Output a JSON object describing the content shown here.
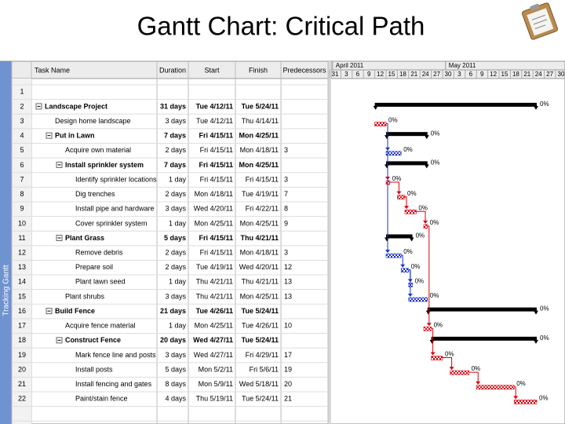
{
  "title": "Gantt Chart: Critical Path",
  "view_label": "Tracking Gantt",
  "columns": [
    "Task Name",
    "Duration",
    "Start",
    "Finish",
    "Predecessors"
  ],
  "timescale": {
    "months": [
      "April 2011",
      "May 2011"
    ],
    "days": [
      "31",
      "3",
      "6",
      "9",
      "12",
      "15",
      "18",
      "21",
      "24",
      "27",
      "30",
      "3",
      "6",
      "9",
      "12",
      "15",
      "18",
      "21",
      "24",
      "27",
      "30"
    ]
  },
  "rows": [
    {
      "id": "1"
    },
    {
      "id": "2",
      "name": "Landscape Project",
      "duration": "31 days",
      "start": "Tue 4/12/11",
      "finish": "Tue 5/24/11",
      "progress": "0%",
      "summary": true,
      "critical": true
    },
    {
      "id": "3",
      "name": "Design home landscape",
      "duration": "3 days",
      "start": "Tue 4/12/11",
      "finish": "Thu 4/14/11",
      "progress": "0%",
      "summary": false,
      "critical": true
    },
    {
      "id": "4",
      "name": "Put in Lawn",
      "duration": "7 days",
      "start": "Fri 4/15/11",
      "finish": "Mon 4/25/11",
      "progress": "0%",
      "summary": true,
      "critical": true
    },
    {
      "id": "5",
      "name": "Acquire own material",
      "duration": "2 days",
      "start": "Fri 4/15/11",
      "finish": "Mon 4/18/11",
      "predecessors": "3",
      "progress": "0%",
      "summary": false,
      "critical": false
    },
    {
      "id": "6",
      "name": "Install sprinkler system",
      "duration": "7 days",
      "start": "Fri 4/15/11",
      "finish": "Mon 4/25/11",
      "progress": "0%",
      "summary": true,
      "critical": true
    },
    {
      "id": "7",
      "name": "Identify sprinkler locations",
      "duration": "1 day",
      "start": "Fri 4/15/11",
      "finish": "Fri 4/15/11",
      "predecessors": "3",
      "progress": "0%",
      "summary": false,
      "critical": true
    },
    {
      "id": "8",
      "name": "Dig trenches",
      "duration": "2 days",
      "start": "Mon 4/18/11",
      "finish": "Tue 4/19/11",
      "predecessors": "7",
      "progress": "0%",
      "summary": false,
      "critical": true
    },
    {
      "id": "9",
      "name": "Install pipe and hardware",
      "duration": "3 days",
      "start": "Wed 4/20/11",
      "finish": "Fri 4/22/11",
      "predecessors": "8",
      "progress": "0%",
      "summary": false,
      "critical": true
    },
    {
      "id": "10",
      "name": "Cover sprinkler system",
      "duration": "1 day",
      "start": "Mon 4/25/11",
      "finish": "Mon 4/25/11",
      "predecessors": "9",
      "progress": "0%",
      "summary": false,
      "critical": true
    },
    {
      "id": "11",
      "name": "Plant Grass",
      "duration": "5 days",
      "start": "Fri 4/15/11",
      "finish": "Thu 4/21/11",
      "progress": "0%",
      "summary": true,
      "critical": false
    },
    {
      "id": "12",
      "name": "Remove debris",
      "duration": "2 days",
      "start": "Fri 4/15/11",
      "finish": "Mon 4/18/11",
      "predecessors": "3",
      "progress": "0%",
      "summary": false,
      "critical": false
    },
    {
      "id": "13",
      "name": "Prepare soil",
      "duration": "2 days",
      "start": "Tue 4/19/11",
      "finish": "Wed 4/20/11",
      "predecessors": "12",
      "progress": "0%",
      "summary": false,
      "critical": false
    },
    {
      "id": "14",
      "name": "Plant lawn seed",
      "duration": "1 day",
      "start": "Thu 4/21/11",
      "finish": "Thu 4/21/11",
      "predecessors": "13",
      "progress": "0%",
      "summary": false,
      "critical": false
    },
    {
      "id": "15",
      "name": "Plant shrubs",
      "duration": "3 days",
      "start": "Thu 4/21/11",
      "finish": "Mon 4/25/11",
      "predecessors": "13",
      "progress": "0%",
      "summary": false,
      "critical": false
    },
    {
      "id": "16",
      "name": "Build Fence",
      "duration": "21 days",
      "start": "Tue 4/26/11",
      "finish": "Tue 5/24/11",
      "progress": "0%",
      "summary": true,
      "critical": true
    },
    {
      "id": "17",
      "name": "Acquire fence material",
      "duration": "1 day",
      "start": "Mon 4/25/11",
      "finish": "Tue 4/26/11",
      "predecessors": "10",
      "progress": "0%",
      "summary": false,
      "critical": true
    },
    {
      "id": "18",
      "name": "Construct Fence",
      "duration": "20 days",
      "start": "Wed 4/27/11",
      "finish": "Tue 5/24/11",
      "progress": "0%",
      "summary": true,
      "critical": true
    },
    {
      "id": "19",
      "name": "Mark fence line and posts",
      "duration": "3 days",
      "start": "Wed 4/27/11",
      "finish": "Fri 4/29/11",
      "predecessors": "17",
      "progress": "0%",
      "summary": false,
      "critical": true
    },
    {
      "id": "20",
      "name": "Install posts",
      "duration": "5 days",
      "start": "Mon 5/2/11",
      "finish": "Fri 5/6/11",
      "predecessors": "19",
      "progress": "0%",
      "summary": false,
      "critical": true
    },
    {
      "id": "21",
      "name": "Install fencing and gates",
      "duration": "8 days",
      "start": "Mon 5/9/11",
      "finish": "Wed 5/18/11",
      "predecessors": "20",
      "progress": "0%",
      "summary": false,
      "critical": true
    },
    {
      "id": "22",
      "name": "Paint/stain fence",
      "duration": "4 days",
      "start": "Thu 5/19/11",
      "finish": "Tue 5/24/11",
      "predecessors": "21",
      "progress": "0%",
      "summary": false,
      "critical": true
    }
  ]
}
